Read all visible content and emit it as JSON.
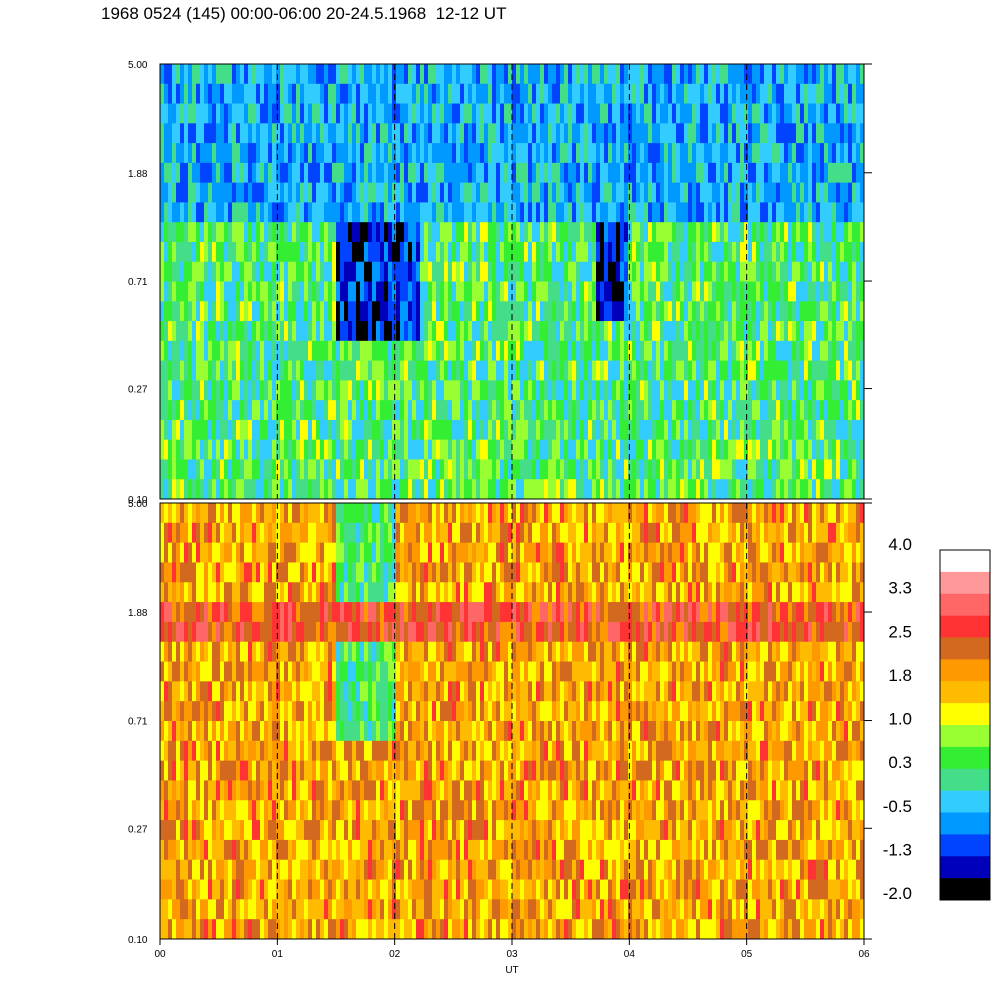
{
  "title": "1968 0524 (145) 00:00-06:00 20-24.5.1968  12-12 UT",
  "chart_data": {
    "type": "heatmap",
    "xlabel": "UT",
    "x_ticks": [
      "00",
      "01",
      "02",
      "03",
      "04",
      "05",
      "06"
    ],
    "xlim": [
      0,
      6
    ],
    "panels": [
      {
        "name": "",
        "y_ticks": [
          "5.00",
          "1.88",
          "0.71",
          "0.27",
          "0.10"
        ],
        "ylim": [
          0.1,
          5.0
        ],
        "y_scale": "log",
        "background_level": 0.3,
        "features": [
          {
            "x_start": 1.5,
            "x_end": 2.2,
            "y_low": 0.4,
            "y_high": 5.0,
            "level": -1.3
          },
          {
            "x_start": 3.7,
            "x_end": 4.0,
            "y_low": 0.5,
            "y_high": 5.0,
            "level": -1.3
          },
          {
            "x_start": 0.0,
            "x_end": 6.0,
            "y_low": 1.2,
            "y_high": 5.0,
            "level": -0.5
          }
        ]
      },
      {
        "name": "",
        "y_ticks": [
          "5.00",
          "1.88",
          "0.71",
          "0.27",
          "0.10"
        ],
        "ylim": [
          0.1,
          5.0
        ],
        "y_scale": "log",
        "background_level": 1.8,
        "features": [
          {
            "x_start": 1.5,
            "x_end": 2.0,
            "y_low": 0.6,
            "y_high": 5.0,
            "level": 0.3
          },
          {
            "x_start": 0.0,
            "x_end": 6.0,
            "y_low": 1.4,
            "y_high": 2.2,
            "level": 2.5
          }
        ]
      }
    ],
    "dashed_vertical_lines_at": [
      1,
      2,
      3,
      4,
      5
    ],
    "colorbar": {
      "labels": [
        "4.0",
        "3.3",
        "2.5",
        "1.8",
        "1.0",
        "0.3",
        "-0.5",
        "-1.3",
        "-2.0"
      ],
      "range": [
        -2.0,
        4.0
      ],
      "colors": [
        "#ffffff",
        "#ff9999",
        "#ff6666",
        "#ff3333",
        "#d2691e",
        "#ff9900",
        "#ffbb00",
        "#ffff00",
        "#99ff33",
        "#33ee33",
        "#44dd88",
        "#33ccff",
        "#0099ff",
        "#0044ff",
        "#0000bb",
        "#000000"
      ]
    }
  }
}
